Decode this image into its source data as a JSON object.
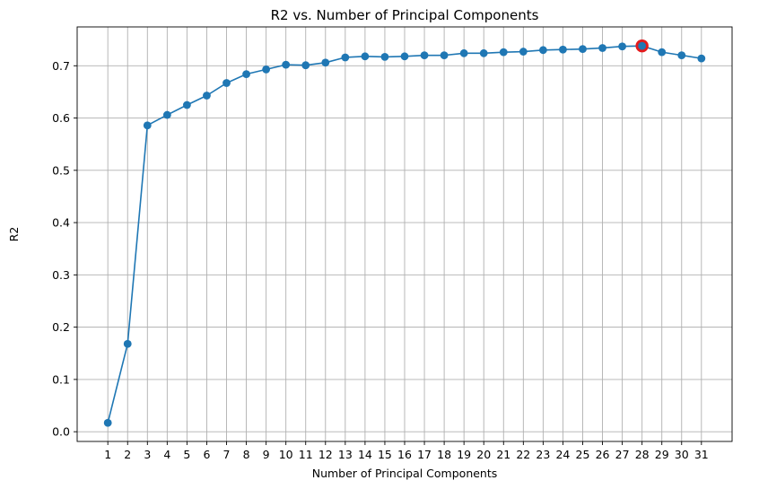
{
  "chart_data": {
    "type": "line",
    "title": "R2 vs. Number of Principal Components",
    "xlabel": "Number of Principal Components",
    "ylabel": "R2",
    "x": [
      1,
      2,
      3,
      4,
      5,
      6,
      7,
      8,
      9,
      10,
      11,
      12,
      13,
      14,
      15,
      16,
      17,
      18,
      19,
      20,
      21,
      22,
      23,
      24,
      25,
      26,
      27,
      28,
      29,
      30,
      31
    ],
    "series": [
      {
        "name": "",
        "color": "#1f77b4",
        "marker": "circle",
        "values": [
          0.017,
          0.168,
          0.586,
          0.606,
          0.625,
          0.643,
          0.667,
          0.684,
          0.693,
          0.702,
          0.701,
          0.706,
          0.716,
          0.718,
          0.717,
          0.718,
          0.72,
          0.72,
          0.724,
          0.724,
          0.726,
          0.727,
          0.73,
          0.731,
          0.732,
          0.734,
          0.737,
          0.738,
          0.726,
          0.72,
          0.714
        ]
      }
    ],
    "highlight": {
      "x": 28,
      "y": 0.738,
      "color": "#e41a1c"
    },
    "xticks": [
      "1",
      "2",
      "3",
      "4",
      "5",
      "6",
      "7",
      "8",
      "9",
      "10",
      "11",
      "12",
      "13",
      "14",
      "15",
      "16",
      "17",
      "18",
      "19",
      "20",
      "21",
      "22",
      "23",
      "24",
      "25",
      "26",
      "27",
      "28",
      "29",
      "30",
      "31"
    ],
    "yticks": [
      "0.0",
      "0.1",
      "0.2",
      "0.3",
      "0.4",
      "0.5",
      "0.6",
      "0.7"
    ],
    "ytick_values": [
      0.0,
      0.1,
      0.2,
      0.3,
      0.4,
      0.5,
      0.6,
      0.7
    ],
    "xlim": [
      -0.55,
      32.55
    ],
    "ylim": [
      -0.0186,
      0.7743
    ],
    "grid": true,
    "legend": "none"
  }
}
